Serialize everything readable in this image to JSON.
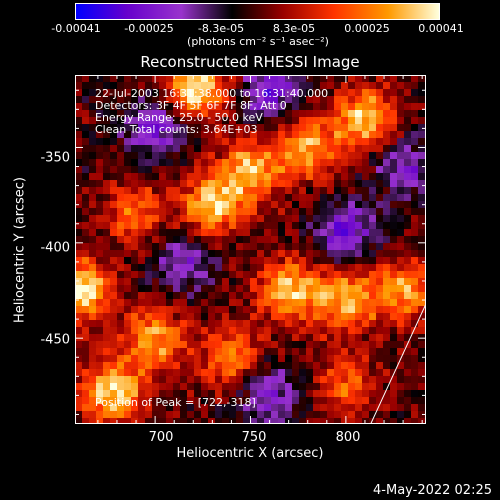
{
  "chart_data": {
    "type": "heatmap",
    "title": "Reconstructed RHESSI Image",
    "xlabel": "Heliocentric X (arcsec)",
    "ylabel": "Heliocentric Y (arcsec)",
    "xlim": [
      658,
      842
    ],
    "ylim": [
      -495,
      -312
    ],
    "x_ticks": [
      700,
      750,
      800
    ],
    "y_ticks": [
      -350,
      -400,
      -450
    ],
    "colorbar": {
      "ticks": [
        "-0.00041",
        "-0.00025",
        "-8.3e-05",
        "8.3e-05",
        "0.00025",
        "0.00041"
      ],
      "range": [
        -0.00041,
        0.00041
      ],
      "unit_label": "(photons cm⁻² s⁻¹ asec⁻²)",
      "colormap": [
        "#0000ff",
        "#6600cc",
        "#9933cc",
        "#000000",
        "#990000",
        "#ff3300",
        "#ff9900",
        "#ffffdd"
      ]
    },
    "annotations": {
      "line1": "22-Jul-2003 16:31:38.000 to 16:31:40.000",
      "line2": "Detectors: 3F 4F 5F 6F 7F 8F, Att 0",
      "line3": "Energy Range: 25.0 - 50.0 keV",
      "line4": "Clean     Total counts: 3.64E+03",
      "peak": "Position of Peak = [722,-318]"
    },
    "bright_regions": [
      {
        "x": 662,
        "y": -425,
        "level": 0.95
      },
      {
        "x": 678,
        "y": -478,
        "level": 0.95
      },
      {
        "x": 722,
        "y": -318,
        "level": 1.0
      },
      {
        "x": 730,
        "y": -380,
        "level": 0.85
      },
      {
        "x": 750,
        "y": -362,
        "level": 0.8
      },
      {
        "x": 780,
        "y": -350,
        "level": 0.75
      },
      {
        "x": 810,
        "y": -335,
        "level": 0.85
      },
      {
        "x": 770,
        "y": -425,
        "level": 0.85
      },
      {
        "x": 800,
        "y": -430,
        "level": 0.8
      },
      {
        "x": 830,
        "y": -425,
        "level": 0.75
      },
      {
        "x": 700,
        "y": -450,
        "level": 0.75
      },
      {
        "x": 740,
        "y": -460,
        "level": 0.6
      },
      {
        "x": 690,
        "y": -385,
        "level": 0.55
      },
      {
        "x": 800,
        "y": -475,
        "level": 0.5
      }
    ],
    "dark_regions": [
      {
        "x": 700,
        "y": -340,
        "level": -0.6
      },
      {
        "x": 760,
        "y": -320,
        "level": -0.65
      },
      {
        "x": 800,
        "y": -395,
        "level": -0.6
      },
      {
        "x": 715,
        "y": -410,
        "level": -0.5
      },
      {
        "x": 760,
        "y": -480,
        "level": -0.55
      },
      {
        "x": 830,
        "y": -360,
        "level": -0.5
      }
    ],
    "limb": [
      [
        813,
        -495
      ],
      [
        842,
        -432
      ]
    ]
  },
  "footer": {
    "date": "4-May-2022 02:25"
  }
}
